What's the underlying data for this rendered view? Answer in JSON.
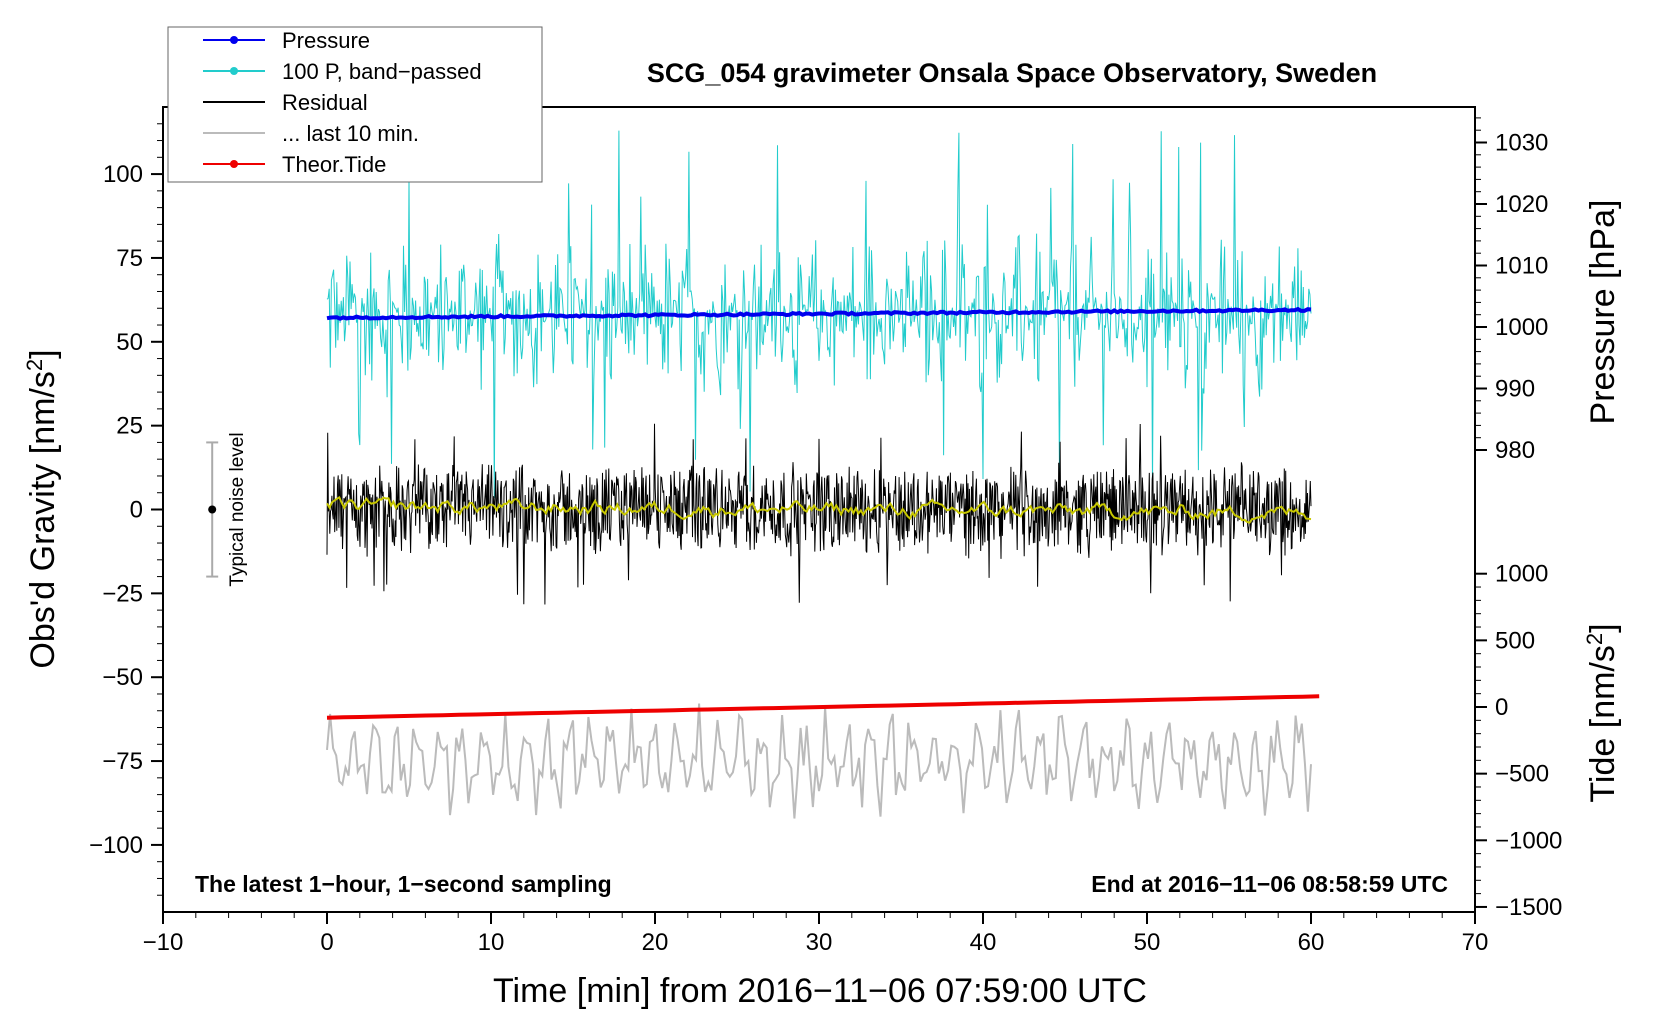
{
  "chart_data": {
    "type": "line",
    "title": "SCG_054 gravimeter Onsala Space Observatory, Sweden",
    "xlabel": "Time [min] from 2016−11−06 07:59:00 UTC",
    "ylabel_left": "Obs'd Gravity [nm/s²]",
    "ylabel_right_top": "Pressure [hPa]",
    "ylabel_right_bottom": "Tide [nm/s²]",
    "xlim": [
      -10,
      70
    ],
    "ylim_left": [
      -120,
      120
    ],
    "x_ticks": [
      -10,
      0,
      10,
      20,
      30,
      40,
      50,
      60,
      70
    ],
    "x_tick_labels": [
      "−10",
      "0",
      "10",
      "20",
      "30",
      "40",
      "50",
      "60",
      "70"
    ],
    "y_ticks_left": [
      100,
      75,
      50,
      25,
      0,
      -25,
      -50,
      -75,
      -100
    ],
    "y_tick_labels_left": [
      "100",
      "75",
      "50",
      "25",
      "0",
      "−25",
      "−50",
      "−75",
      "−100"
    ],
    "pressure_ticks": [
      1030,
      1020,
      1010,
      1000,
      990,
      980
    ],
    "pressure_tick_labels": [
      "1030",
      "1020",
      "1010",
      "1000",
      "990",
      "980"
    ],
    "tide_ticks": [
      1000,
      500,
      0,
      -500,
      -1000,
      -1500
    ],
    "tide_tick_labels": [
      "1000",
      "500",
      "0",
      "−500",
      "−1000",
      "−1500"
    ],
    "legend": [
      {
        "label": "Pressure",
        "color": "#0000ee",
        "marker": true
      },
      {
        "label": "100 P, band−passed",
        "color": "#22cccc",
        "marker": true
      },
      {
        "label": "Residual",
        "color": "#000000",
        "marker": false
      },
      {
        "label": "... last 10 min.",
        "color": "#bbbbbb",
        "marker": false
      },
      {
        "label": "Theor.Tide",
        "color": "#ee0000",
        "marker": true
      }
    ],
    "series": [
      {
        "name": "Pressure",
        "axis": "pressure",
        "color": "#0000ee",
        "x_range": [
          0,
          60
        ],
        "start": 1001.5,
        "end": 1002.8
      },
      {
        "name": "100 P, band−passed",
        "axis": "left",
        "color": "#22cccc",
        "x_range": [
          0,
          60
        ],
        "center": 58,
        "amplitude": 25
      },
      {
        "name": "Residual",
        "axis": "left",
        "color": "#000000",
        "x_range": [
          0,
          60
        ],
        "center": 0,
        "amplitude": 15
      },
      {
        "name": "Residual smoothed",
        "axis": "left",
        "color": "#c8c800",
        "x_range": [
          0,
          60
        ],
        "center": 0,
        "amplitude": 1.5
      },
      {
        "name": "... last 10 min.",
        "axis": "left",
        "color": "#bbbbbb",
        "x_range": [
          0,
          60
        ],
        "center": -75,
        "amplitude": 14
      },
      {
        "name": "Theor.Tide",
        "axis": "tide",
        "color": "#ee0000",
        "x_range": [
          0,
          60.5
        ],
        "start": -80,
        "end": 80
      }
    ],
    "noise_bar": {
      "label": "Typical noise level",
      "x": -7,
      "center": 0,
      "low": -20,
      "high": 20
    },
    "annotations": {
      "bottom_left": "The latest 1−hour, 1−second sampling",
      "bottom_right": "End at 2016−11−06 08:58:59 UTC"
    }
  }
}
